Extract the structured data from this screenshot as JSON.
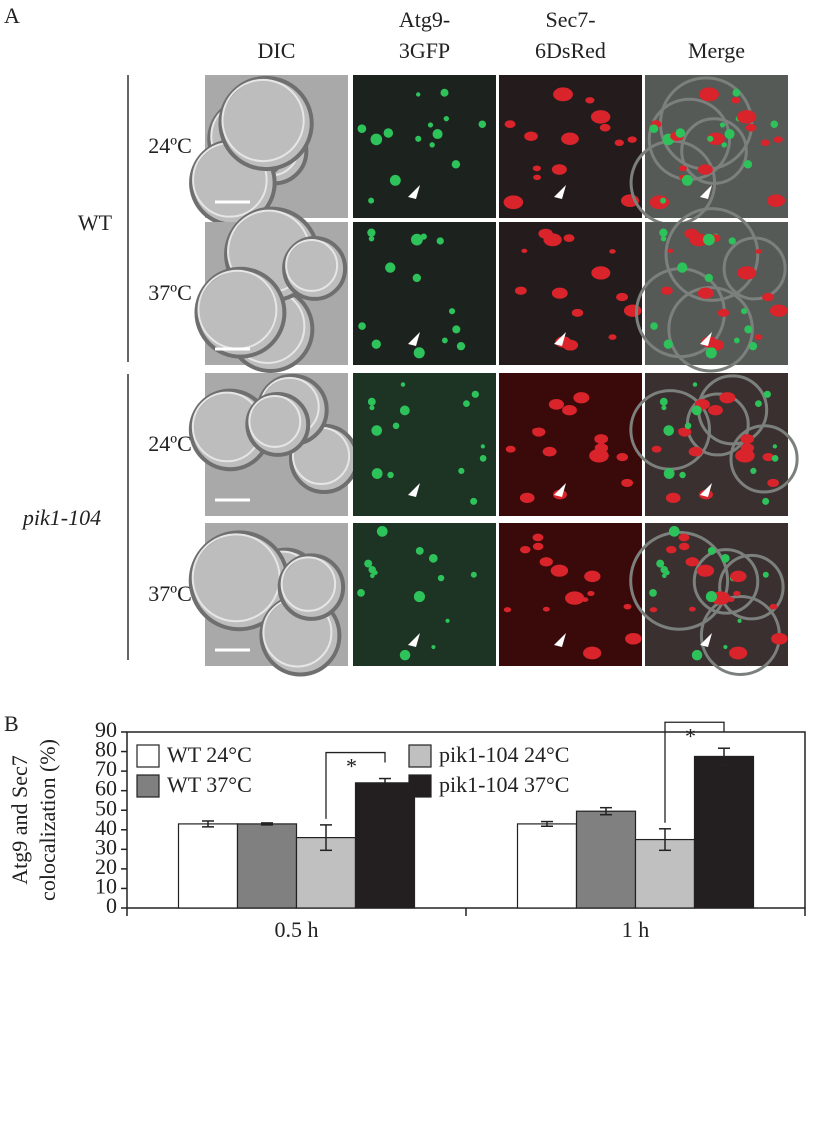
{
  "panel_a": {
    "label": "A",
    "columns": [
      [
        "DIC"
      ],
      [
        "Atg9-",
        "3GFP"
      ],
      [
        "Sec7-",
        "6DsRed"
      ],
      [
        "Merge"
      ]
    ],
    "groups": [
      {
        "label": "WT",
        "rows": [
          "24ºC",
          "37ºC"
        ]
      },
      {
        "label": "pik1-104",
        "rows": [
          "24ºC",
          "37ºC"
        ]
      }
    ]
  },
  "panel_b": {
    "label": "B"
  },
  "chart_data": {
    "type": "bar",
    "y_label": [
      "Atg9 and Sec7",
      "colocalization (%)"
    ],
    "categories": [
      "0.5 h",
      "1 h"
    ],
    "series": [
      {
        "name": "WT 24°C",
        "color": "#ffffff",
        "values": [
          43,
          43
        ],
        "errors": [
          1.5,
          1.2
        ]
      },
      {
        "name": "WT 37°C",
        "color": "#808080",
        "values": [
          43,
          49.5
        ],
        "errors": [
          0.5,
          1.8
        ]
      },
      {
        "name": "pik1-104  24°C",
        "color": "#c0c0c0",
        "values": [
          36,
          35
        ],
        "errors": [
          6.5,
          5.5
        ]
      },
      {
        "name": "pik1-104  37°C",
        "color": "#231f20",
        "values": [
          64,
          77.5
        ],
        "errors": [
          2.2,
          4.2
        ]
      }
    ],
    "ylim": [
      0,
      90
    ],
    "yticks": [
      0,
      10,
      20,
      30,
      40,
      50,
      60,
      70,
      80,
      90
    ],
    "annotations": [
      "*",
      "*"
    ]
  }
}
